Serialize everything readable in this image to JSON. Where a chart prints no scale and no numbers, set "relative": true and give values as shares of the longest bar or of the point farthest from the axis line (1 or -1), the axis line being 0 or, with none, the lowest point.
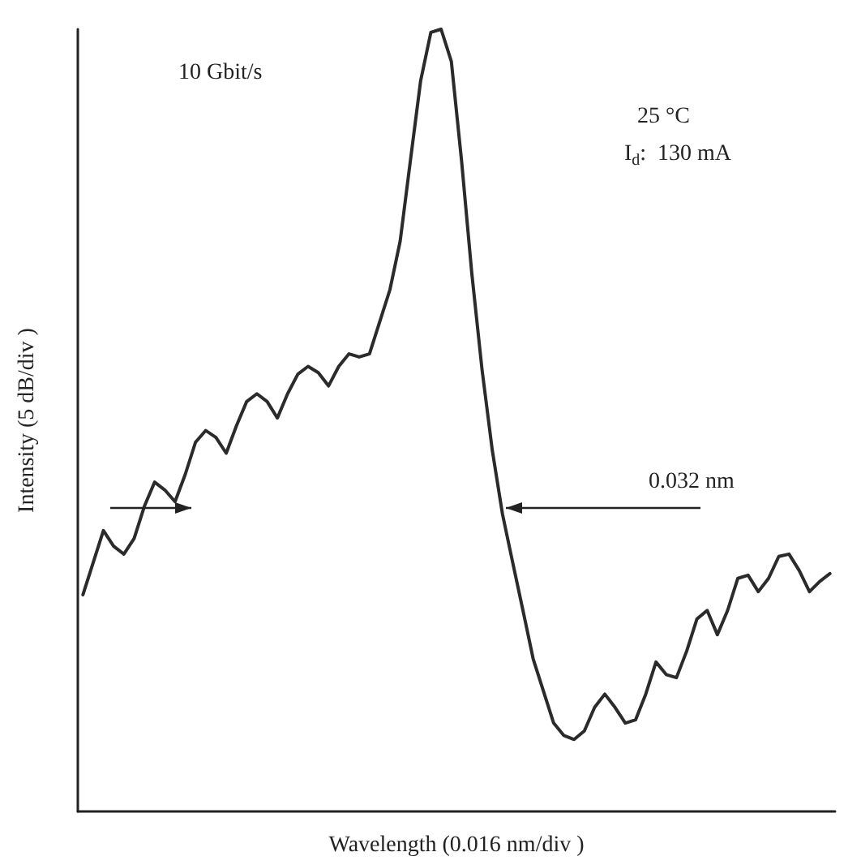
{
  "chart_data": {
    "type": "line",
    "relative": true,
    "color": "#2b2b2b",
    "xlabel": "Wavelength (0.016 nm/div )",
    "ylabel": "Intensity (5 dB/div )",
    "grid": false,
    "marker": "none",
    "line_style": "solid",
    "annotations": [
      "10 Gbit/s",
      "25 °C",
      "I$_{d}$:  130 mA",
      "0.032 nm"
    ],
    "categories": [
      null,
      null,
      null,
      null,
      null,
      null,
      null,
      null,
      null,
      null,
      null,
      null,
      null,
      null,
      null,
      null,
      null,
      null,
      null,
      null,
      null,
      null,
      null,
      null,
      null,
      null,
      null,
      null,
      null,
      null,
      null,
      null,
      null,
      null,
      null,
      null,
      null,
      null,
      null,
      null,
      null,
      null,
      null,
      null,
      null,
      null,
      null,
      null,
      null,
      null,
      null,
      null,
      null,
      null,
      null,
      null,
      null,
      null,
      null,
      null,
      null,
      null,
      null,
      null,
      null,
      null,
      null,
      null,
      null,
      null,
      null,
      null,
      null,
      null
    ],
    "values": [
      0.277,
      0.318,
      0.359,
      0.339,
      0.329,
      0.349,
      0.39,
      0.421,
      0.411,
      0.396,
      0.431,
      0.472,
      0.487,
      0.478,
      0.458,
      0.493,
      0.524,
      0.534,
      0.524,
      0.503,
      0.534,
      0.559,
      0.569,
      0.561,
      0.544,
      0.569,
      0.585,
      0.581,
      0.585,
      0.626,
      0.667,
      0.729,
      0.832,
      0.934,
      0.996,
      1.0,
      0.959,
      0.832,
      0.688,
      0.565,
      0.462,
      0.38,
      0.318,
      0.257,
      0.195,
      0.154,
      0.113,
      0.097,
      0.092,
      0.103,
      0.133,
      0.15,
      0.133,
      0.113,
      0.117,
      0.15,
      0.191,
      0.175,
      0.171,
      0.205,
      0.246,
      0.257,
      0.226,
      0.257,
      0.298,
      0.302,
      0.281,
      0.298,
      0.326,
      0.329,
      0.308,
      0.281,
      0.294,
      0.304
    ]
  }
}
